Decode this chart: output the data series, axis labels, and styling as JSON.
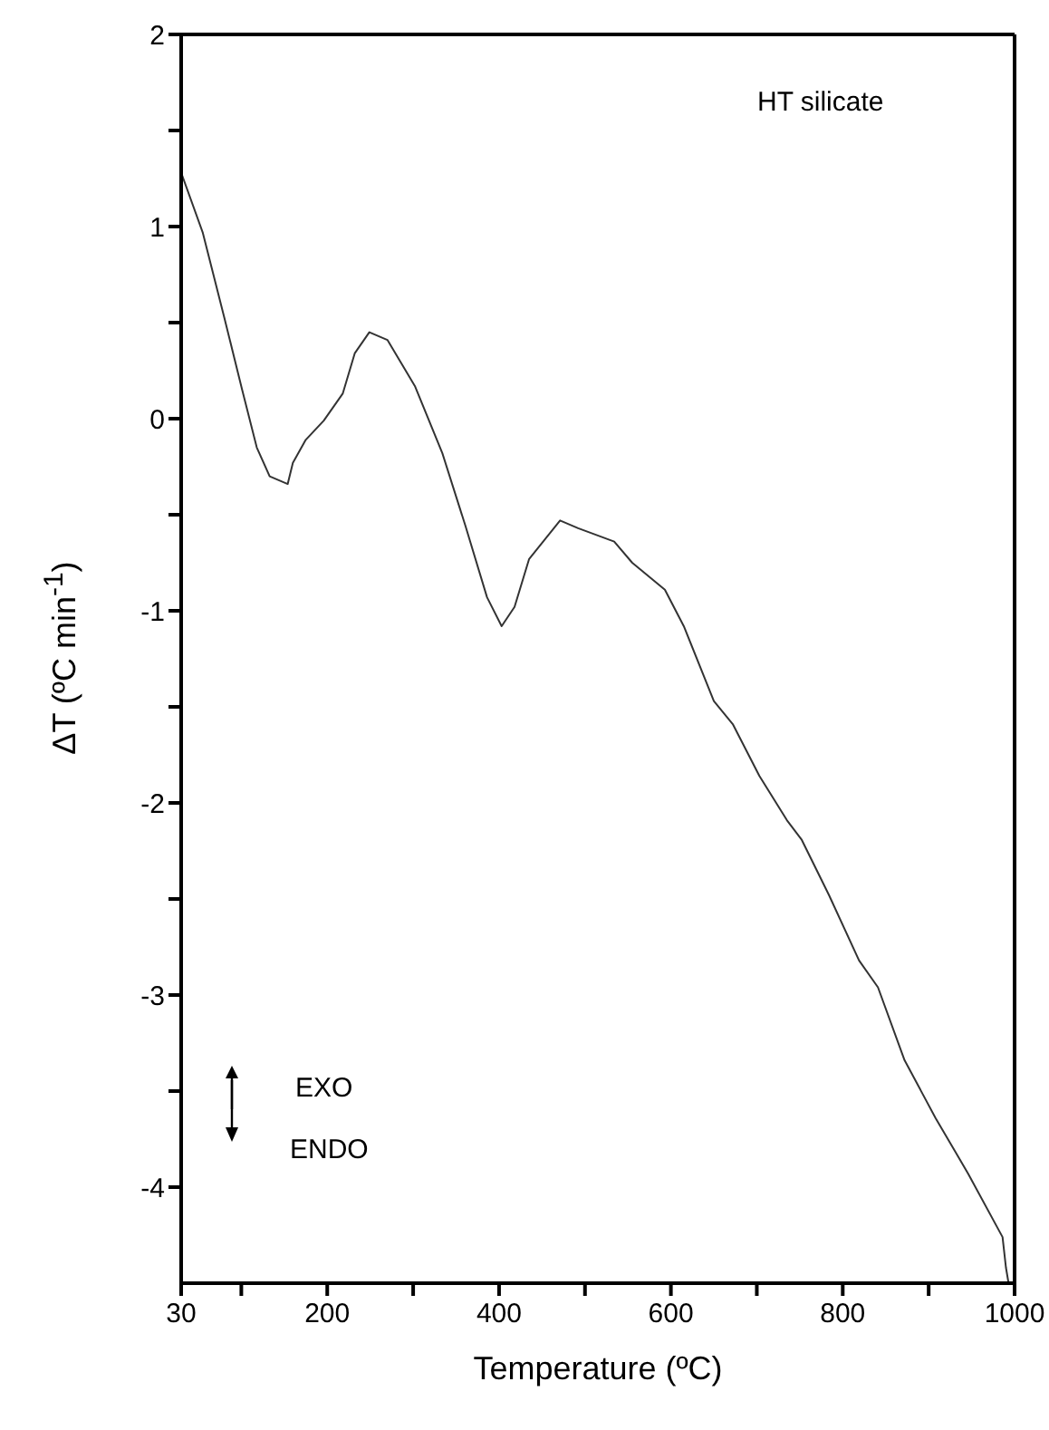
{
  "chart_data": {
    "type": "line",
    "xlabel": "Temperature (ºC)",
    "ylabel": "ΔT (ºC min$^{-1}$)",
    "annotations": [
      "HT silicate",
      "EXO",
      "ENDO"
    ],
    "x": [
      30,
      55,
      80,
      101,
      118,
      133,
      154,
      160,
      175,
      196,
      218,
      232,
      249,
      270,
      302,
      334,
      361,
      386,
      403,
      418,
      435,
      471,
      492,
      534,
      555,
      593,
      615,
      650,
      672,
      703,
      735,
      752,
      784,
      819,
      841,
      872,
      908,
      946,
      986,
      990,
      993
    ],
    "series": [
      {
        "color": "#333333",
        "values": [
          1.28,
          0.97,
          0.53,
          0.15,
          -0.15,
          -0.3,
          -0.34,
          -0.23,
          -0.11,
          -0.01,
          0.13,
          0.34,
          0.45,
          0.41,
          0.17,
          -0.18,
          -0.56,
          -0.93,
          -1.08,
          -0.98,
          -0.73,
          -0.53,
          -0.57,
          -0.64,
          -0.75,
          -0.89,
          -1.08,
          -1.47,
          -1.59,
          -1.86,
          -2.09,
          -2.19,
          -2.48,
          -2.82,
          -2.96,
          -3.34,
          -3.64,
          -3.93,
          -4.26,
          -4.42,
          -4.5
        ]
      }
    ],
    "xlim": [
      30,
      1000
    ],
    "xticks": [
      30,
      {
        "value": 100,
        "label": null
      },
      200,
      {
        "value": 300,
        "label": null
      },
      400,
      {
        "value": 500,
        "label": null
      },
      600,
      {
        "value": 700,
        "label": null
      },
      800,
      {
        "value": 900,
        "label": null
      },
      1000
    ],
    "ylim": [
      -4.5,
      2
    ],
    "yticks": [
      -4,
      {
        "value": -3.5,
        "label": null
      },
      -3,
      {
        "value": -2.5,
        "label": null
      },
      -2,
      {
        "value": -1.5,
        "label": null
      },
      -1,
      {
        "value": -0.5,
        "label": null
      },
      0,
      {
        "value": 0.5,
        "label": null
      },
      1,
      {
        "value": 1.5,
        "label": null
      },
      2
    ],
    "grid": false,
    "legend": false,
    "marker": "none",
    "line_style": "solid"
  }
}
